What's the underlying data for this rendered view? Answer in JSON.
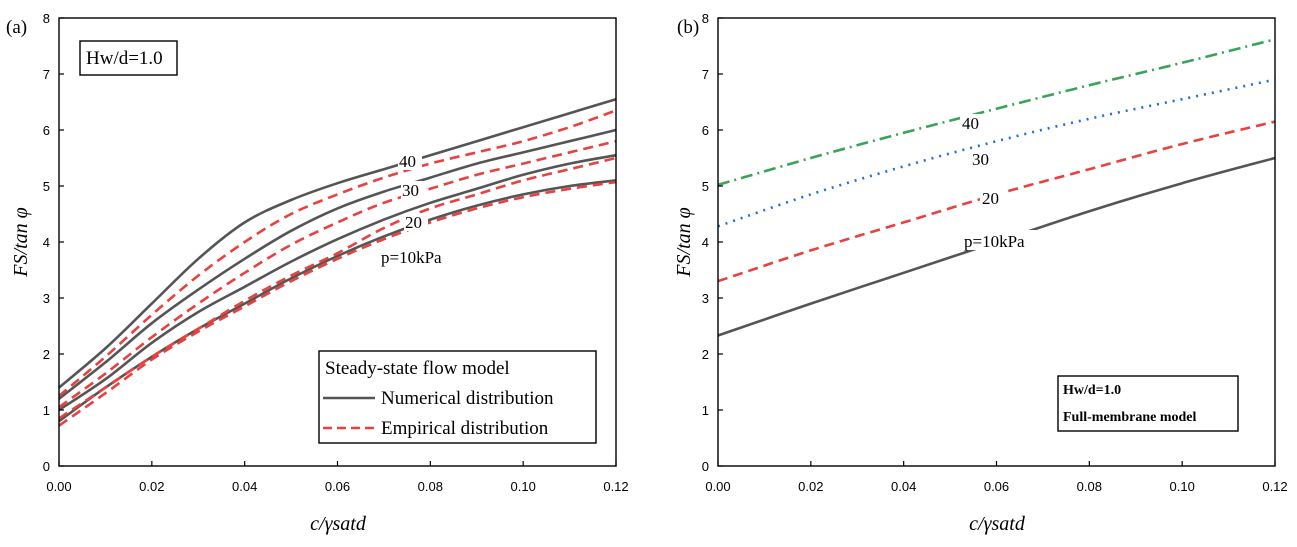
{
  "chart_data": [
    {
      "panel": "(a)",
      "type": "line",
      "xlabel": "c/γsatd",
      "ylabel": "FS/tan φ",
      "xlim": [
        0,
        0.12
      ],
      "ylim": [
        0,
        8
      ],
      "xticks": [
        "0.00",
        "0.02",
        "0.04",
        "0.06",
        "0.08",
        "0.10",
        "0.12"
      ],
      "yticks": [
        "0",
        "1",
        "2",
        "3",
        "4",
        "5",
        "6",
        "7",
        "8"
      ],
      "inset_label": "Hw/d=1.0",
      "legend": {
        "title": "Steady-state flow model",
        "entries": [
          "Numerical distribution",
          "Empirical distribution"
        ],
        "placement": "bottom-right"
      },
      "curve_labels": [
        "40",
        "30",
        "20",
        "p=10kPa"
      ],
      "series": [
        {
          "name": "Numerical distribution",
          "p": 10,
          "style": "solid",
          "color": "#555555",
          "x": [
            0,
            0.01,
            0.02,
            0.03,
            0.04,
            0.05,
            0.06,
            0.07,
            0.08,
            0.09,
            0.1,
            0.11,
            0.12
          ],
          "y": [
            0.8,
            1.4,
            1.95,
            2.45,
            2.9,
            3.35,
            3.75,
            4.1,
            4.4,
            4.65,
            4.85,
            5.0,
            5.1
          ]
        },
        {
          "name": "Empirical distribution",
          "p": 10,
          "style": "dashed",
          "color": "#e8413f",
          "x": [
            0,
            0.01,
            0.02,
            0.03,
            0.04,
            0.05,
            0.06,
            0.07,
            0.08,
            0.09,
            0.1,
            0.11,
            0.12
          ],
          "y": [
            0.72,
            1.3,
            1.9,
            2.4,
            2.85,
            3.3,
            3.7,
            4.05,
            4.35,
            4.6,
            4.8,
            4.95,
            5.07
          ]
        },
        {
          "name": "Numerical distribution",
          "p": 20,
          "style": "solid",
          "color": "#555555",
          "x": [
            0,
            0.01,
            0.02,
            0.03,
            0.04,
            0.05,
            0.06,
            0.07,
            0.08,
            0.09,
            0.1,
            0.11,
            0.12
          ],
          "y": [
            1.0,
            1.55,
            2.2,
            2.75,
            3.2,
            3.65,
            4.05,
            4.4,
            4.7,
            4.95,
            5.2,
            5.4,
            5.55
          ]
        },
        {
          "name": "Empirical distribution",
          "p": 20,
          "style": "dashed",
          "color": "#e8413f",
          "x": [
            0,
            0.01,
            0.02,
            0.03,
            0.04,
            0.05,
            0.06,
            0.07,
            0.08,
            0.09,
            0.1,
            0.11,
            0.12
          ],
          "y": [
            0.85,
            1.4,
            1.95,
            2.45,
            2.95,
            3.4,
            3.8,
            4.25,
            4.6,
            4.85,
            5.1,
            5.3,
            5.5
          ]
        },
        {
          "name": "Numerical distribution",
          "p": 30,
          "style": "solid",
          "color": "#555555",
          "x": [
            0,
            0.01,
            0.02,
            0.03,
            0.04,
            0.05,
            0.06,
            0.07,
            0.08,
            0.09,
            0.1,
            0.11,
            0.12
          ],
          "y": [
            1.2,
            1.85,
            2.55,
            3.15,
            3.7,
            4.2,
            4.6,
            4.9,
            5.15,
            5.4,
            5.6,
            5.8,
            6.0
          ]
        },
        {
          "name": "Empirical distribution",
          "p": 30,
          "style": "dashed",
          "color": "#e8413f",
          "x": [
            0,
            0.01,
            0.02,
            0.03,
            0.04,
            0.05,
            0.06,
            0.07,
            0.08,
            0.09,
            0.1,
            0.11,
            0.12
          ],
          "y": [
            1.05,
            1.65,
            2.3,
            2.9,
            3.45,
            3.95,
            4.35,
            4.7,
            4.95,
            5.2,
            5.4,
            5.6,
            5.8
          ]
        },
        {
          "name": "Numerical distribution",
          "p": 40,
          "style": "solid",
          "color": "#555555",
          "x": [
            0,
            0.01,
            0.02,
            0.03,
            0.04,
            0.05,
            0.06,
            0.07,
            0.08,
            0.09,
            0.1,
            0.11,
            0.12
          ],
          "y": [
            1.4,
            2.1,
            2.9,
            3.7,
            4.35,
            4.75,
            5.05,
            5.3,
            5.55,
            5.8,
            6.05,
            6.3,
            6.55
          ]
        },
        {
          "name": "Empirical distribution",
          "p": 40,
          "style": "dashed",
          "color": "#e8413f",
          "x": [
            0,
            0.01,
            0.02,
            0.03,
            0.04,
            0.05,
            0.06,
            0.07,
            0.08,
            0.09,
            0.1,
            0.11,
            0.12
          ],
          "y": [
            1.25,
            1.95,
            2.7,
            3.4,
            4.0,
            4.5,
            4.85,
            5.15,
            5.4,
            5.6,
            5.8,
            6.05,
            6.35
          ]
        }
      ]
    },
    {
      "panel": "(b)",
      "type": "line",
      "xlabel": "c/γsatd",
      "ylabel": "FS/tan φ",
      "xlim": [
        0,
        0.12
      ],
      "ylim": [
        0,
        8
      ],
      "xticks": [
        "0.00",
        "0.02",
        "0.04",
        "0.06",
        "0.08",
        "0.10",
        "0.12"
      ],
      "yticks": [
        "0",
        "1",
        "2",
        "3",
        "4",
        "5",
        "6",
        "7",
        "8"
      ],
      "legend": {
        "line1": "Hw/d=1.0",
        "line2": "Full-membrane model",
        "placement": "bottom-right"
      },
      "curve_labels": [
        "40",
        "30",
        "20",
        "p=10kPa"
      ],
      "series": [
        {
          "p": 10,
          "style": "solid",
          "color": "#555555",
          "x": [
            0,
            0.02,
            0.04,
            0.06,
            0.08,
            0.1,
            0.12
          ],
          "y": [
            2.33,
            2.9,
            3.45,
            4.0,
            4.55,
            5.05,
            5.5
          ]
        },
        {
          "p": 20,
          "style": "dashed",
          "color": "#e8413f",
          "x": [
            0,
            0.02,
            0.04,
            0.06,
            0.08,
            0.1,
            0.12
          ],
          "y": [
            3.3,
            3.85,
            4.35,
            4.85,
            5.3,
            5.75,
            6.15
          ]
        },
        {
          "p": 30,
          "style": "dotted",
          "color": "#1f6fd6",
          "x": [
            0,
            0.02,
            0.04,
            0.06,
            0.08,
            0.1,
            0.12
          ],
          "y": [
            4.28,
            4.85,
            5.35,
            5.8,
            6.2,
            6.55,
            6.9
          ]
        },
        {
          "p": 40,
          "style": "dashdot",
          "color": "#3aa35a",
          "x": [
            0,
            0.02,
            0.04,
            0.06,
            0.08,
            0.1,
            0.12
          ],
          "y": [
            5.02,
            5.5,
            5.95,
            6.38,
            6.8,
            7.2,
            7.62
          ]
        }
      ]
    }
  ]
}
